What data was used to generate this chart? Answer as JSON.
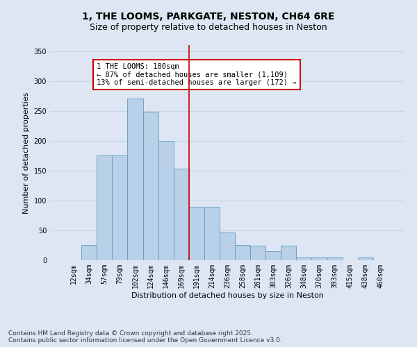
{
  "title": "1, THE LOOMS, PARKGATE, NESTON, CH64 6RE",
  "subtitle": "Size of property relative to detached houses in Neston",
  "xlabel": "Distribution of detached houses by size in Neston",
  "ylabel": "Number of detached properties",
  "categories": [
    "12sqm",
    "34sqm",
    "57sqm",
    "79sqm",
    "102sqm",
    "124sqm",
    "146sqm",
    "169sqm",
    "191sqm",
    "214sqm",
    "236sqm",
    "258sqm",
    "281sqm",
    "303sqm",
    "326sqm",
    "348sqm",
    "370sqm",
    "393sqm",
    "415sqm",
    "438sqm",
    "460sqm"
  ],
  "values": [
    0,
    25,
    175,
    175,
    271,
    248,
    200,
    153,
    90,
    90,
    46,
    25,
    24,
    15,
    24,
    5,
    5,
    5,
    0,
    5,
    0
  ],
  "bar_color": "#b8d0e8",
  "bar_edge_color": "#6699bb",
  "vline_x": 8,
  "vline_color": "#cc0000",
  "annotation_text": "1 THE LOOMS: 180sqm\n← 87% of detached houses are smaller (1,109)\n13% of semi-detached houses are larger (172) →",
  "annotation_box_color": "#ffffff",
  "annotation_box_edge": "#cc0000",
  "ylim": [
    0,
    360
  ],
  "yticks": [
    0,
    50,
    100,
    150,
    200,
    250,
    300,
    350
  ],
  "background_color": "#dde6f2",
  "grid_color": "#c8d4e8",
  "footer1": "Contains HM Land Registry data © Crown copyright and database right 2025.",
  "footer2": "Contains public sector information licensed under the Open Government Licence v3.0.",
  "title_fontsize": 10,
  "subtitle_fontsize": 9,
  "label_fontsize": 8,
  "tick_fontsize": 7,
  "footer_fontsize": 6.5,
  "annot_fontsize": 7.5
}
